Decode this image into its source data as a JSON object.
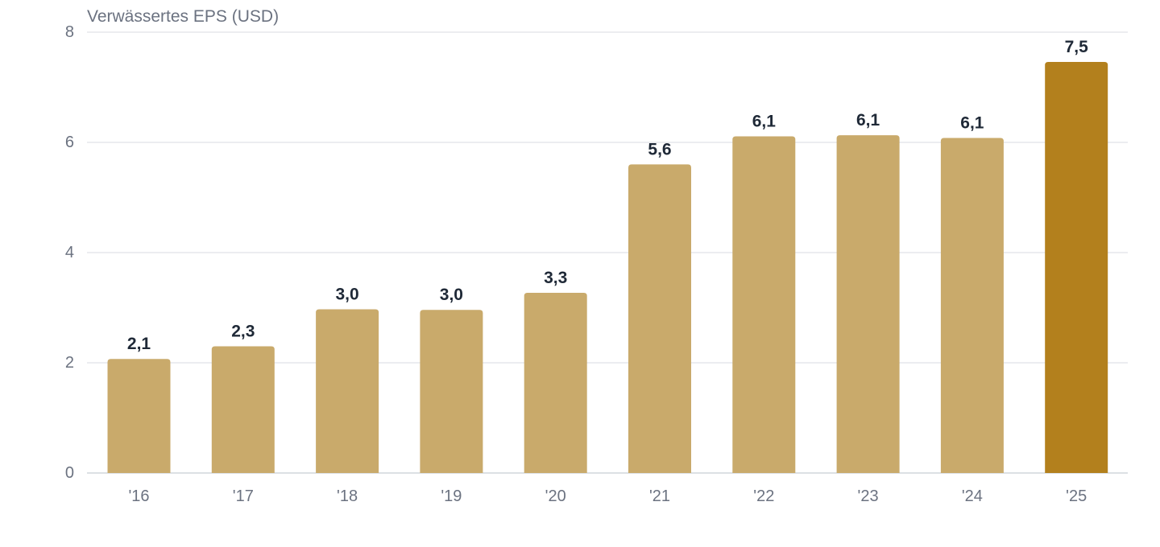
{
  "chart_data": {
    "type": "bar",
    "title": "",
    "ylabel": "Verwässertes EPS (USD)",
    "xlabel": "",
    "categories": [
      "'16",
      "'17",
      "'18",
      "'19",
      "'20",
      "'21",
      "'22",
      "'23",
      "'24",
      "'25"
    ],
    "values": [
      2.07,
      2.3,
      2.97,
      2.96,
      3.27,
      5.6,
      6.11,
      6.13,
      6.08,
      7.46
    ],
    "value_labels": [
      "2,1",
      "2,3",
      "3,0",
      "3,0",
      "3,3",
      "5,6",
      "6,1",
      "6,1",
      "6,1",
      "7,5"
    ],
    "ylim": [
      0,
      8
    ],
    "yticks": [
      0,
      2,
      4,
      6,
      8
    ],
    "ytick_labels": [
      "0",
      "2",
      "4",
      "6",
      "8"
    ],
    "grid": true,
    "colors": {
      "bar": "#c9aa6b",
      "highlight_bar": "#b3801d",
      "grid": "#e5e7eb",
      "text": "#6b7280",
      "value_text": "#1f2937"
    },
    "highlight_index": 9
  }
}
